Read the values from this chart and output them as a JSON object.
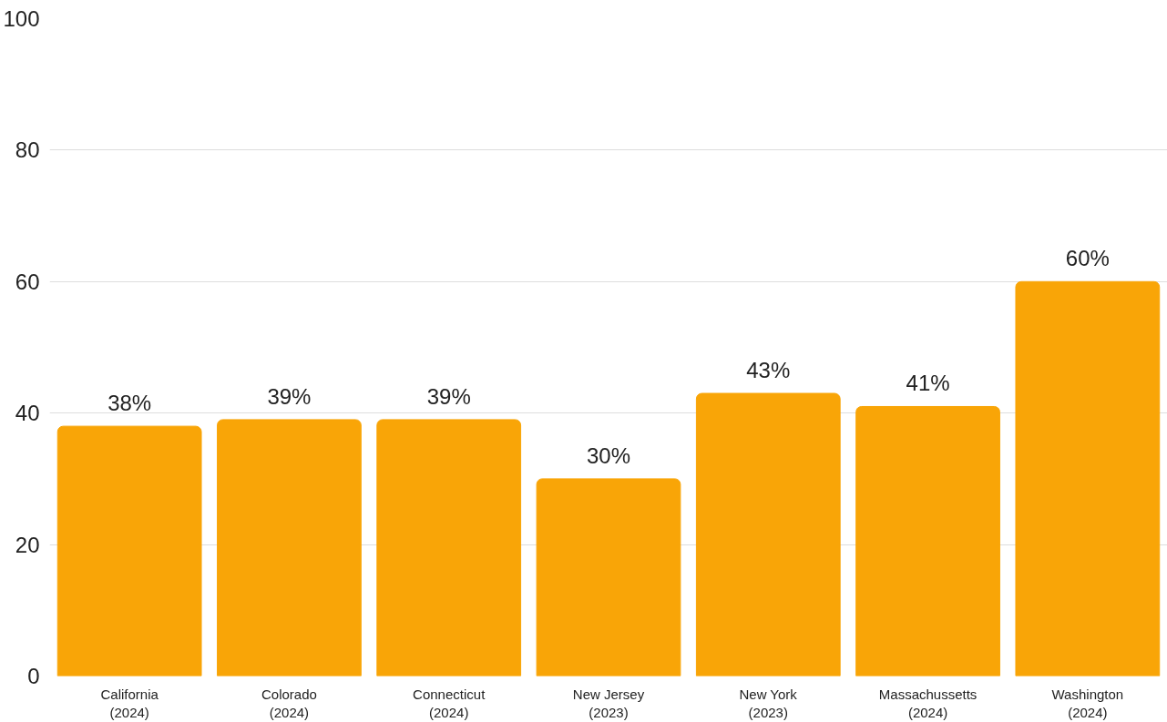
{
  "chart_data": {
    "type": "bar",
    "categories": [
      "California\n(2024)",
      "Colorado\n(2024)",
      "Connecticut\n(2024)",
      "New Jersey\n(2023)",
      "New York\n(2023)",
      "Massachussetts\n(2024)",
      "Washington\n(2024)"
    ],
    "values": [
      38,
      39,
      39,
      30,
      43,
      41,
      60
    ],
    "value_labels": [
      "38%",
      "39%",
      "39%",
      "30%",
      "43%",
      "41%",
      "60%"
    ],
    "color": "#f9a507",
    "ylim": [
      0,
      100
    ],
    "yticks": [
      0,
      20,
      40,
      60,
      80,
      100
    ],
    "grid": "y"
  }
}
